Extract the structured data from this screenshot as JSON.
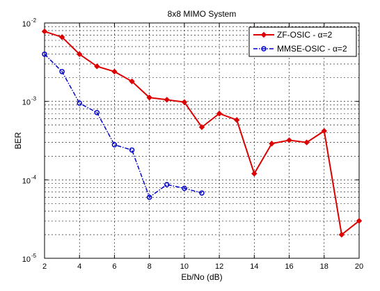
{
  "chart_data": {
    "type": "line",
    "title": "8x8 MIMO System",
    "xlabel": "Eb/No (dB)",
    "ylabel": "BER",
    "xlim": [
      2,
      20
    ],
    "ylim": [
      1e-05,
      0.01
    ],
    "yscale": "log",
    "grid": true,
    "legend_position": "top-right",
    "x_ticks": [
      "2",
      "4",
      "6",
      "8",
      "10",
      "12",
      "14",
      "16",
      "18",
      "20"
    ],
    "y_ticks": [
      {
        "base": "10",
        "exp": "-5"
      },
      {
        "base": "10",
        "exp": "-4"
      },
      {
        "base": "10",
        "exp": "-3"
      },
      {
        "base": "10",
        "exp": "-2"
      }
    ],
    "series": [
      {
        "name": "ZF-OSIC - α=2",
        "color": "#dd0000",
        "style": "solid",
        "marker": "diamond",
        "x": [
          2,
          3,
          4,
          5,
          6,
          7,
          8,
          9,
          10,
          11,
          12,
          13,
          14,
          15,
          16,
          17,
          18,
          19,
          20
        ],
        "y": [
          0.0078,
          0.0066,
          0.004,
          0.0028,
          0.0024,
          0.0018,
          0.00112,
          0.00105,
          0.00098,
          0.00047,
          0.0007,
          0.00058,
          0.00012,
          0.00029,
          0.00032,
          0.0003,
          0.00042,
          2e-05,
          3e-05
        ]
      },
      {
        "name": "MMSE-OSIC - α=2",
        "color": "#0000cc",
        "style": "dashdot",
        "marker": "circle",
        "x": [
          2,
          3,
          4,
          5,
          6,
          7,
          8,
          9,
          10,
          11
        ],
        "y": [
          0.004,
          0.0024,
          0.00095,
          0.00072,
          0.00028,
          0.00024,
          6e-05,
          8.7e-05,
          7.8e-05,
          6.8e-05
        ]
      }
    ]
  }
}
